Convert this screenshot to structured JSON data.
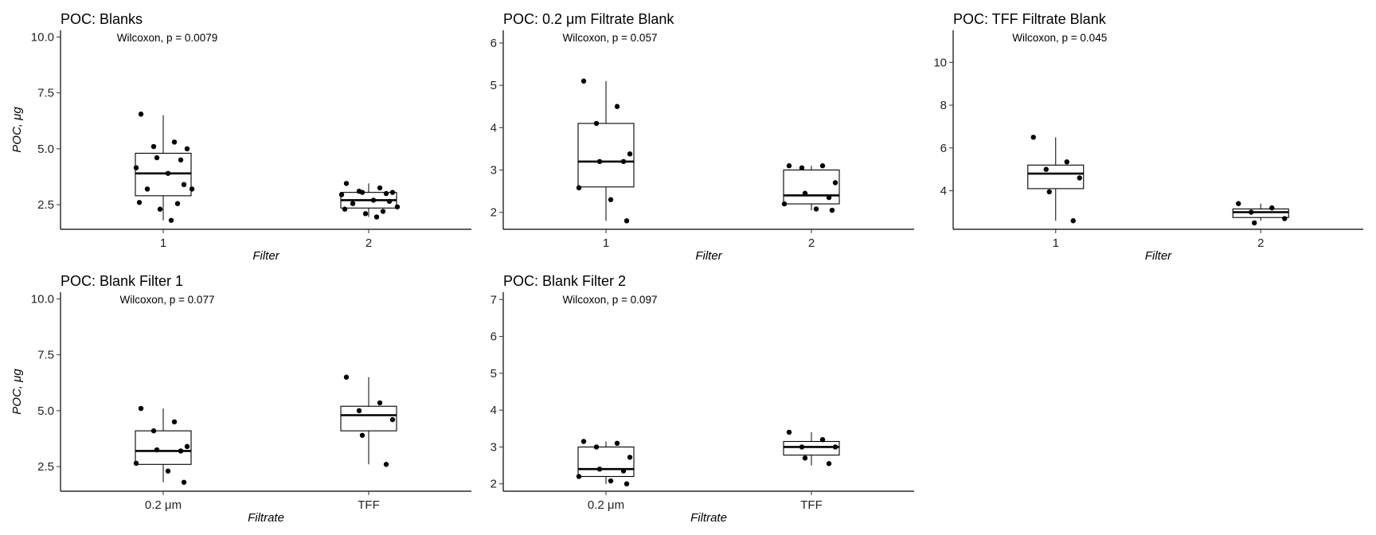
{
  "chart_data": [
    {
      "type": "box",
      "title": "POC: Blanks",
      "annotation": "Wilcoxon, p = 0.0079",
      "xlabel": "Filter",
      "ylabel": "POC, μg",
      "ylim": [
        1.4,
        10.3
      ],
      "yticks": [
        2.5,
        5.0,
        7.5,
        10.0
      ],
      "ytick_labels": [
        "2.5",
        "5.0",
        "7.5",
        "10.0"
      ],
      "categories": [
        "1",
        "2"
      ],
      "groups": [
        {
          "category": "1",
          "min": 1.8,
          "q1": 2.9,
          "median": 3.9,
          "q3": 4.8,
          "max": 6.5,
          "points": [
            6.55,
            5.3,
            5.1,
            5.0,
            4.6,
            4.5,
            4.15,
            3.9,
            3.4,
            3.2,
            3.2,
            2.6,
            2.55,
            2.3,
            1.8
          ]
        },
        {
          "category": "2",
          "min": 1.95,
          "q1": 2.35,
          "median": 2.7,
          "q3": 3.05,
          "max": 3.45,
          "points": [
            3.45,
            3.25,
            3.1,
            3.05,
            3.05,
            3.0,
            2.95,
            2.7,
            2.65,
            2.55,
            2.4,
            2.3,
            2.2,
            2.1,
            1.95
          ]
        }
      ]
    },
    {
      "type": "box",
      "title": "POC: 0.2 μm Filtrate Blank",
      "annotation": "Wilcoxon, p = 0.057",
      "xlabel": "Filter",
      "ylabel": "",
      "ylim": [
        1.6,
        6.3
      ],
      "yticks": [
        2,
        3,
        4,
        5,
        6
      ],
      "ytick_labels": [
        "2",
        "3",
        "4",
        "5",
        "6"
      ],
      "categories": [
        "1",
        "2"
      ],
      "groups": [
        {
          "category": "1",
          "min": 1.8,
          "q1": 2.6,
          "median": 3.2,
          "q3": 4.1,
          "max": 5.1,
          "points": [
            5.1,
            4.5,
            4.1,
            3.38,
            3.2,
            3.2,
            2.58,
            2.3,
            1.8
          ]
        },
        {
          "category": "2",
          "min": 2.05,
          "q1": 2.2,
          "median": 2.4,
          "q3": 3.0,
          "max": 3.1,
          "points": [
            3.1,
            3.1,
            3.05,
            2.7,
            2.45,
            2.35,
            2.2,
            2.08,
            2.05
          ]
        }
      ]
    },
    {
      "type": "box",
      "title": "POC: TFF Filtrate Blank",
      "annotation": "Wilcoxon, p = 0.045",
      "xlabel": "Filter",
      "ylabel": "",
      "ylim": [
        2.2,
        11.5
      ],
      "yticks": [
        4,
        6,
        8,
        10
      ],
      "ytick_labels": [
        "4",
        "6",
        "8",
        "10"
      ],
      "categories": [
        "1",
        "2"
      ],
      "groups": [
        {
          "category": "1",
          "min": 2.6,
          "q1": 4.1,
          "median": 4.8,
          "q3": 5.2,
          "max": 6.5,
          "points": [
            6.5,
            5.35,
            5.0,
            4.6,
            3.95,
            2.6
          ]
        },
        {
          "category": "2",
          "min": 2.6,
          "q1": 2.75,
          "median": 3.0,
          "q3": 3.15,
          "max": 3.4,
          "points": [
            3.4,
            3.2,
            3.0,
            2.7,
            2.5
          ]
        }
      ]
    },
    {
      "type": "box",
      "title": "POC: Blank Filter 1",
      "annotation": "Wilcoxon, p = 0.077",
      "xlabel": "Filtrate",
      "ylabel": "POC, μg",
      "ylim": [
        1.4,
        10.3
      ],
      "yticks": [
        2.5,
        5.0,
        7.5,
        10.0
      ],
      "ytick_labels": [
        "2.5",
        "5.0",
        "7.5",
        "10.0"
      ],
      "categories": [
        "0.2 μm",
        "TFF"
      ],
      "groups": [
        {
          "category": "0.2 μm",
          "min": 1.8,
          "q1": 2.6,
          "median": 3.2,
          "q3": 4.1,
          "max": 5.1,
          "points": [
            5.1,
            4.5,
            4.1,
            3.4,
            3.25,
            3.2,
            2.65,
            2.3,
            1.8
          ]
        },
        {
          "category": "TFF",
          "min": 2.6,
          "q1": 4.1,
          "median": 4.8,
          "q3": 5.2,
          "max": 6.5,
          "points": [
            6.5,
            5.35,
            5.0,
            4.6,
            3.9,
            2.6
          ]
        }
      ]
    },
    {
      "type": "box",
      "title": "POC: Blank Filter 2",
      "annotation": "Wilcoxon, p = 0.097",
      "xlabel": "Filtrate",
      "ylabel": "",
      "ylim": [
        1.8,
        7.2
      ],
      "yticks": [
        2,
        3,
        4,
        5,
        6,
        7
      ],
      "ytick_labels": [
        "2",
        "3",
        "4",
        "5",
        "6",
        "7"
      ],
      "categories": [
        "0.2 μm",
        "TFF"
      ],
      "groups": [
        {
          "category": "0.2 μm",
          "min": 2.0,
          "q1": 2.2,
          "median": 2.4,
          "q3": 3.0,
          "max": 3.15,
          "points": [
            3.15,
            3.1,
            3.0,
            2.72,
            2.4,
            2.35,
            2.2,
            2.08,
            2.0
          ]
        },
        {
          "category": "TFF",
          "min": 2.5,
          "q1": 2.78,
          "median": 3.0,
          "q3": 3.15,
          "max": 3.4,
          "points": [
            3.4,
            3.2,
            3.0,
            3.0,
            2.7,
            2.55
          ]
        }
      ]
    }
  ]
}
